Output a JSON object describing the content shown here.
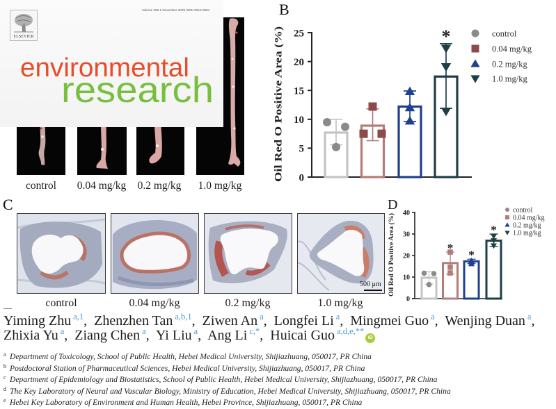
{
  "cover": {
    "publisher": "ELSEVIER",
    "issue_line": "Volume 286   1 November 2025   ISSN 0013-9351",
    "title_line1": "environmental",
    "title_line2": "research",
    "colors": {
      "title_line1": "#e84d2a",
      "title_line2": "#78bf3f"
    }
  },
  "figure": {
    "panel_a": {
      "labels": [
        "control",
        "0.04 mg/kg",
        "0.2 mg/kg",
        "1.0 mg/kg"
      ]
    },
    "panel_b": {
      "letter": "B"
    },
    "panel_c": {
      "letter": "C",
      "labels": [
        "control",
        "0.04 mg/kg",
        "0.2 mg/kg",
        "1.0 mg/kg"
      ],
      "scale_bar": "500 μm"
    },
    "panel_d": {
      "letter": "D"
    },
    "corner_mark": "—"
  },
  "chart_data": [
    {
      "panel": "B",
      "type": "bar",
      "title": "",
      "xlabel": "",
      "ylabel": "Oil Red O Positive Area (%)",
      "categories": [
        "control",
        "0.04 mg/kg",
        "0.2 mg/kg",
        "1.0 mg/kg"
      ],
      "values": [
        7.7,
        8.9,
        12.2,
        17.4
      ],
      "error_upper": [
        10.0,
        11.8,
        14.9,
        23.1
      ],
      "error_lower": [
        5.6,
        6.3,
        9.6,
        11.9
      ],
      "points": [
        [
          9.5,
          8.7,
          5.2
        ],
        [
          7.5,
          7.5,
          12.2
        ],
        [
          14.8,
          12.0,
          9.7
        ],
        [
          22.3,
          19.1,
          11.4
        ]
      ],
      "significance": [
        "",
        "",
        "",
        "*"
      ],
      "ylim": [
        0,
        25
      ],
      "yticks": [
        0,
        5,
        10,
        15,
        20,
        25
      ],
      "grid": false,
      "legend": {
        "position": "right",
        "entries": [
          {
            "label": "control",
            "marker": "circle",
            "color": "#8a8a8a"
          },
          {
            "label": "0.04 mg/kg",
            "marker": "square",
            "color": "#8e4a4a"
          },
          {
            "label": "0.2 mg/kg",
            "marker": "triangle-up",
            "color": "#1f3f8f"
          },
          {
            "label": "1.0 mg/kg",
            "marker": "triangle-down",
            "color": "#1e3e48"
          }
        ]
      },
      "bar_colors": [
        "#c4c4c4",
        "#b47c78",
        "#1f3f8f",
        "#1e3e48"
      ]
    },
    {
      "panel": "D",
      "type": "bar",
      "title": "",
      "xlabel": "",
      "ylabel": "Oil Red O Positive Area (%)",
      "categories": [
        "control",
        "0.04 mg/kg",
        "0.2 mg/kg",
        "1.0 mg/kg"
      ],
      "values": [
        9.7,
        16.5,
        17.3,
        26.9
      ],
      "error_upper": [
        12.6,
        21.6,
        18.3,
        30.0
      ],
      "error_lower": [
        6.7,
        11.4,
        16.2,
        24.2
      ],
      "points": [
        [
          11.8,
          11.6,
          6.5
        ],
        [
          21.6,
          14.6,
          11.9
        ],
        [
          17.6,
          17.0,
          16.1
        ],
        [
          29.0,
          27.0,
          24.6
        ]
      ],
      "significance": [
        "",
        "*",
        "*",
        "*"
      ],
      "ylim": [
        0,
        40
      ],
      "yticks": [
        0,
        10,
        20,
        30,
        40
      ],
      "grid": false,
      "legend": {
        "position": "top-right",
        "entries": [
          {
            "label": "control",
            "marker": "circle",
            "color": "#8a8a8a"
          },
          {
            "label": "0.04 mg/kg",
            "marker": "square",
            "color": "#b47c78"
          },
          {
            "label": "0.2 mg/kg",
            "marker": "triangle-up",
            "color": "#1f3f8f"
          },
          {
            "label": "1.0 mg/kg",
            "marker": "triangle-down",
            "color": "#1e3e48"
          }
        ]
      },
      "bar_colors": [
        "#c4c4c4",
        "#b47c78",
        "#1f3f8f",
        "#1e3e48"
      ]
    }
  ],
  "authors": [
    {
      "name": "Yiming Zhu",
      "sup": "a,1",
      "sep": ","
    },
    {
      "name": "Zhenzhen Tan",
      "sup": "a,b,1",
      "sep": ","
    },
    {
      "name": "Ziwen An",
      "sup": "a",
      "sep": ","
    },
    {
      "name": "Longfei Li",
      "sup": "a",
      "sep": ","
    },
    {
      "name": "Mingmei Guo",
      "sup": "a",
      "sep": ","
    },
    {
      "name": "Wenjing Duan",
      "sup": "a",
      "sep": ","
    },
    {
      "name": "Zhixia Yu",
      "sup": "a",
      "sep": ","
    },
    {
      "name": "Ziang Chen",
      "sup": "a",
      "sep": ","
    },
    {
      "name": "Yi Liu",
      "sup": "a",
      "sep": ","
    },
    {
      "name": "Ang Li",
      "sup": "c,*",
      "sep": ","
    },
    {
      "name": "Huicai Guo",
      "sup": "a,d,e,**",
      "sep": ""
    }
  ],
  "orcid_label": "iD",
  "affiliations": [
    {
      "key": "a",
      "text": "Department of Toxicology, School of Public Health, Hebei Medical University, Shijiazhuang, 050017, PR China"
    },
    {
      "key": "b",
      "text": "Postdoctoral Station of Pharmaceutical Sciences, Hebei Medical University, Shijiazhuang, 050017, PR China"
    },
    {
      "key": "c",
      "text": "Department of Epidemiology and Biostatistics, School of Public Health, Hebei Medical University, Shijiazhuang, 050017, PR China"
    },
    {
      "key": "d",
      "text": "The Key Laboratory of Neural and Vascular Biology, Ministry of Education, Hebei Medical University, Shijiazhuang, 050017, PR China"
    },
    {
      "key": "e",
      "text": "Hebei Key Laboratory of Environment and Human Health, Hebei Province, Shijiazhuang, 050017, PR China"
    }
  ]
}
